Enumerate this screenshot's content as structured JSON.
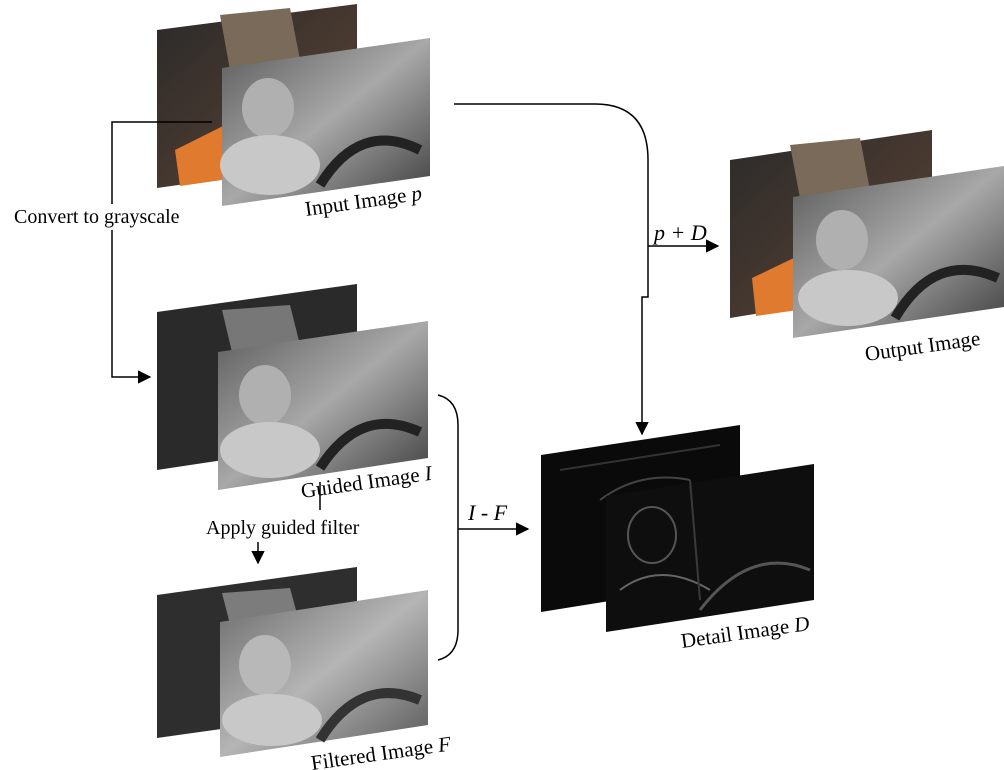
{
  "labels": {
    "convert": "Convert to grayscale",
    "input_label": "Input Image",
    "input_var": "p",
    "guided_label": "Guided Image",
    "guided_var": "I",
    "apply": "Apply guided filter",
    "filtered_label": "Filtered Image",
    "filtered_var": "F",
    "i_minus_f": "I - F",
    "p_plus_d": "p + D",
    "output_label": "Output Image",
    "detail_label": "Detail Image",
    "detail_var": "D"
  },
  "colors": {
    "orange": "#e07a2e",
    "dark": "#1c1c1c",
    "gray": "#8a8a8a",
    "detail_bg": "#0a0a0a"
  }
}
